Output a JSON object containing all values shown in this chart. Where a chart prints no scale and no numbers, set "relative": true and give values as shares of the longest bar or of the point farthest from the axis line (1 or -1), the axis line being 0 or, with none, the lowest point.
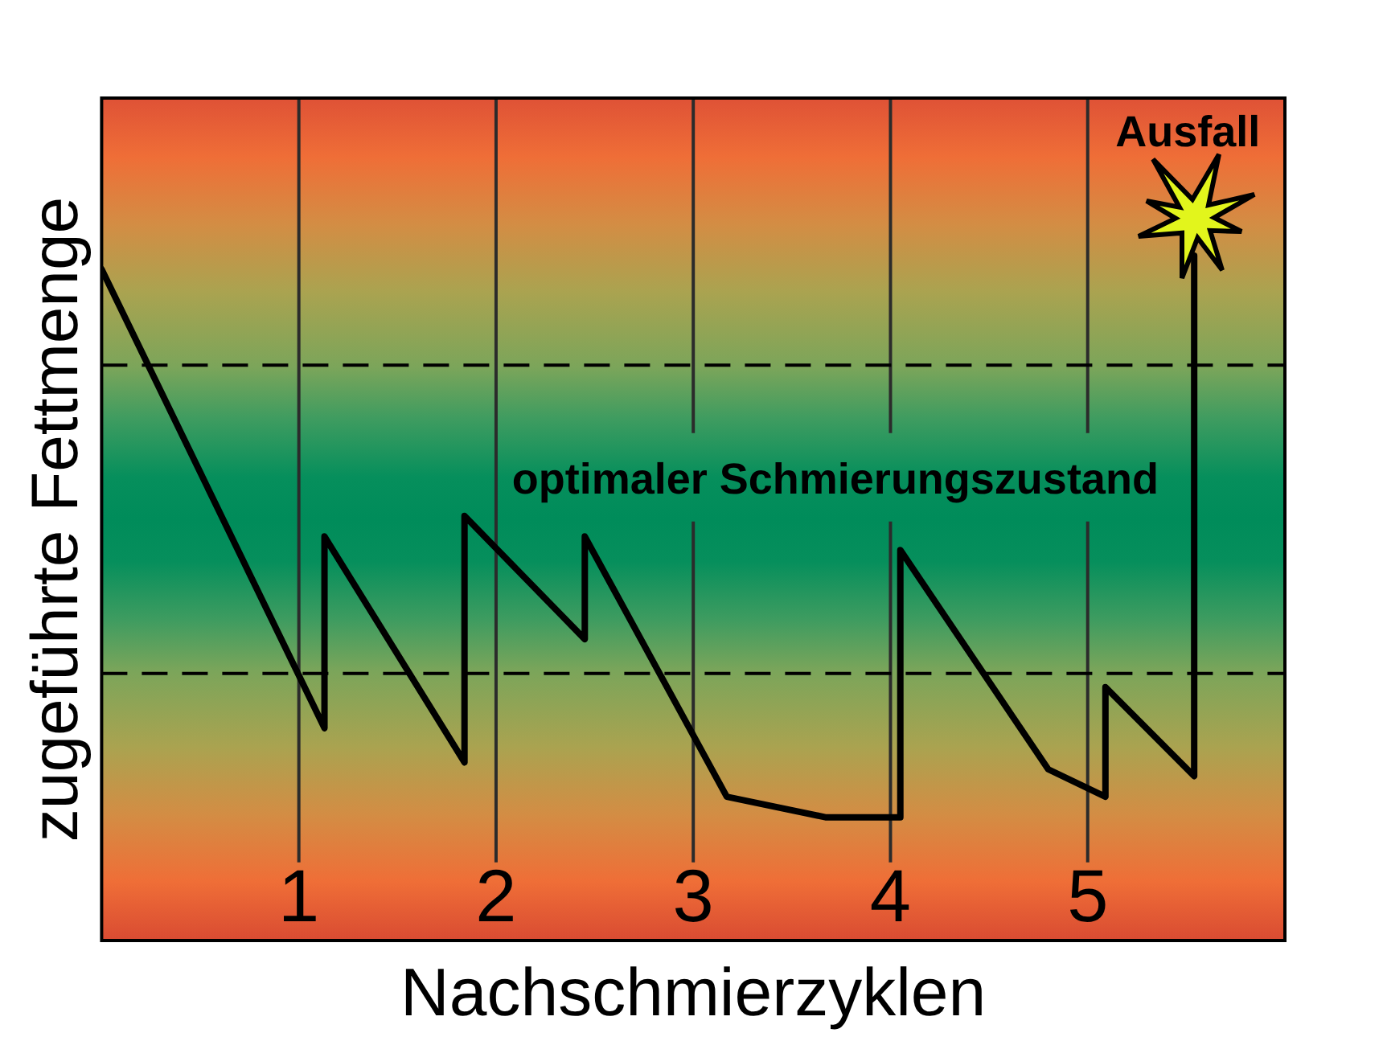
{
  "chart_data": {
    "type": "line",
    "relative": true,
    "xlabel": "Nachschmierzyklen",
    "ylabel": "zugeführte Fettmenge",
    "xlim": [
      0,
      6
    ],
    "xticks": [
      1,
      2,
      3,
      4,
      5
    ],
    "x": [
      0,
      1.13,
      1.13,
      1.84,
      1.84,
      2.45,
      2.45,
      3.17,
      3.67,
      4.05,
      4.05,
      4.8,
      5.09,
      5.09,
      5.54,
      5.54
    ],
    "values": [
      0.98,
      0.31,
      0.59,
      0.26,
      0.62,
      0.44,
      0.59,
      0.21,
      0.18,
      0.18,
      0.57,
      0.25,
      0.21,
      0.37,
      0.24,
      1
    ],
    "color": "#000000",
    "ref_lines": [
      {
        "axis": "y",
        "value": 0.84,
        "color": "#000000",
        "line_style": "dashed"
      },
      {
        "axis": "y",
        "value": 0.39,
        "color": "#000000",
        "line_style": "dashed"
      }
    ],
    "annotations": [
      "optimaler Schmierungszustand",
      {
        "text": "Ausfall",
        "x": 5.54,
        "y": 1
      }
    ],
    "grid": "x",
    "tick_labels": "x",
    "legend": false,
    "marker": "none",
    "line_style": "solid"
  }
}
